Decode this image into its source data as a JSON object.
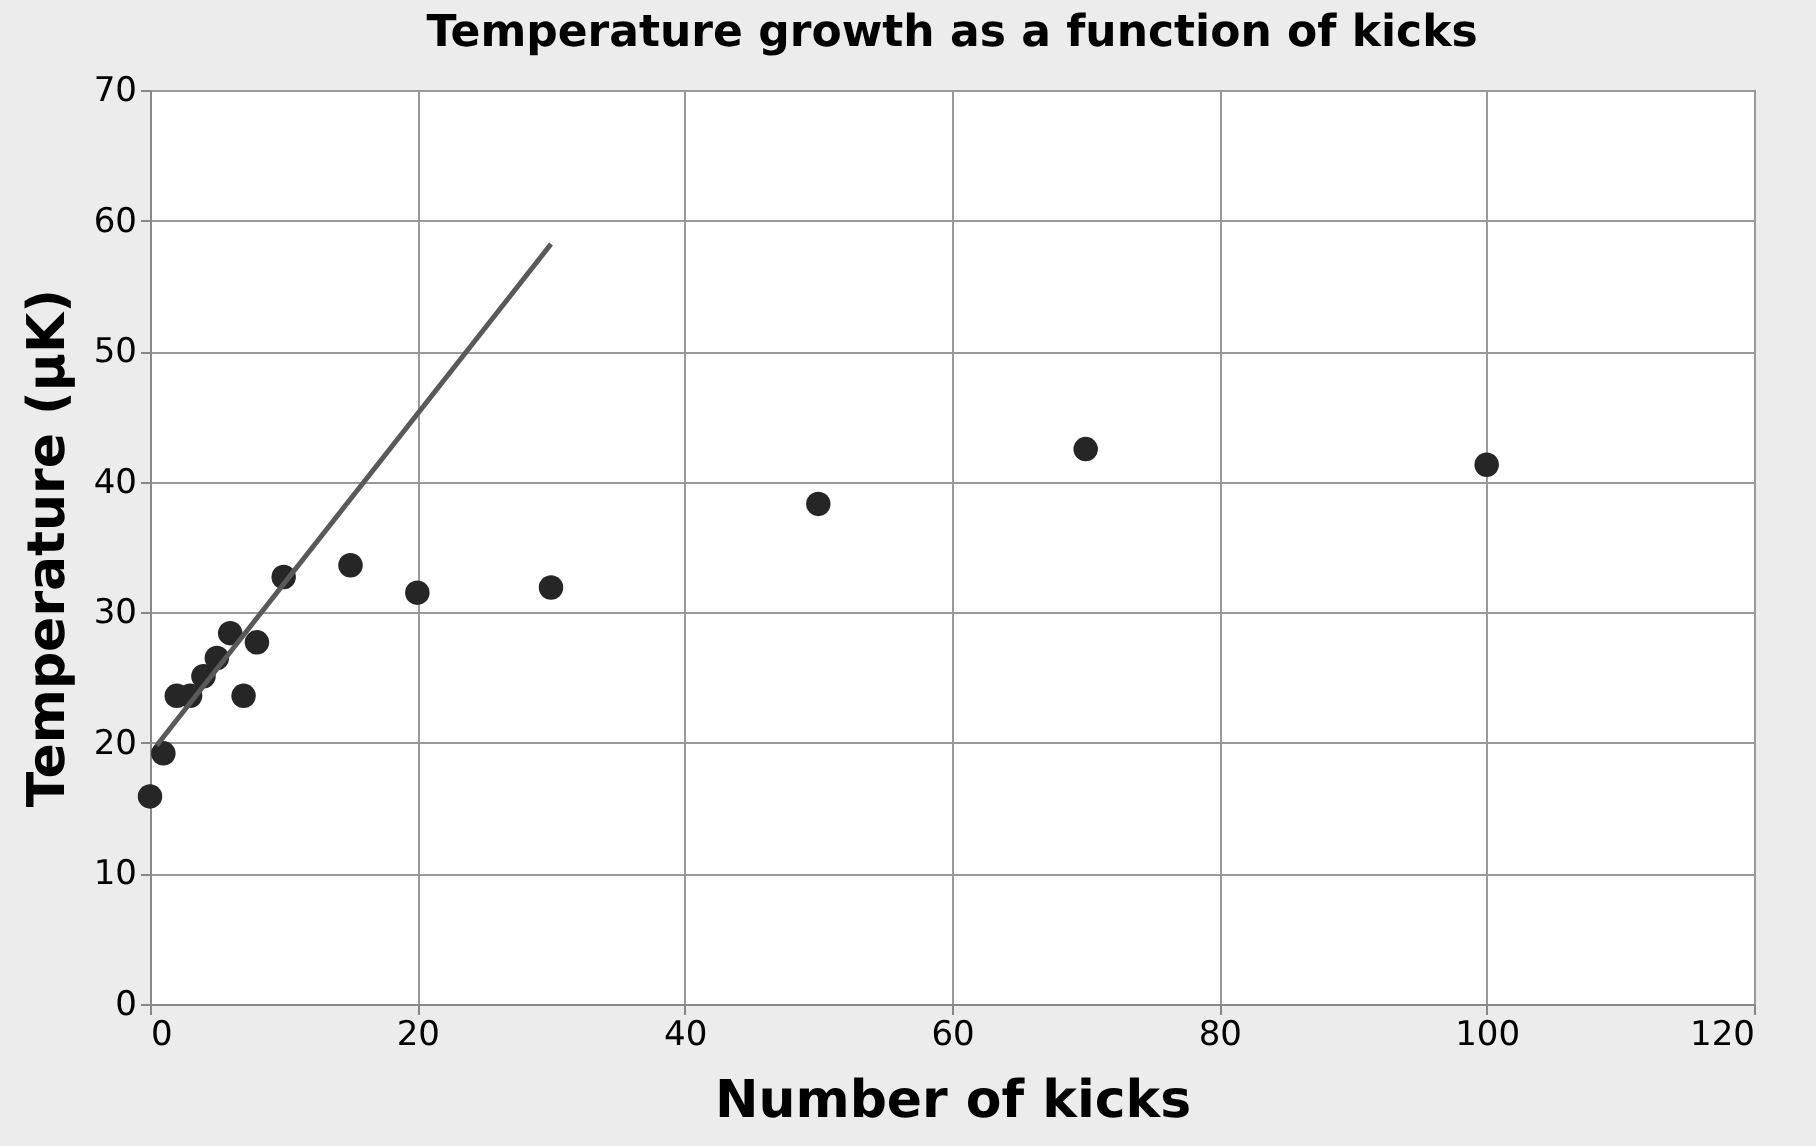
{
  "chart_data": {
    "type": "scatter",
    "title": "Temperature growth as a function of kicks",
    "xlabel": "Number of kicks",
    "ylabel": "Temperature (µK)",
    "series": [
      {
        "color": "#262626",
        "marker": "circle",
        "x": [
          0,
          1,
          2,
          3,
          4,
          5,
          6,
          7,
          8,
          10,
          15,
          20,
          30,
          50,
          70,
          100
        ],
        "values": [
          15.9,
          19.2,
          23.6,
          23.6,
          25.1,
          26.5,
          28.4,
          23.6,
          27.7,
          32.7,
          33.6,
          31.5,
          31.9,
          38.3,
          42.5,
          41.3
        ]
      },
      {
        "type": "line",
        "color": "#595959",
        "marker": "none",
        "x": [
          0.5,
          30
        ],
        "values": [
          19.8,
          58.2
        ]
      }
    ],
    "xlim": [
      0,
      120
    ],
    "xticks": [
      0,
      20,
      40,
      60,
      80,
      100,
      120
    ],
    "ylim": [
      0,
      70
    ],
    "yticks": [
      0,
      10,
      20,
      30,
      40,
      50,
      60,
      70
    ],
    "grid": true,
    "legend": false
  }
}
